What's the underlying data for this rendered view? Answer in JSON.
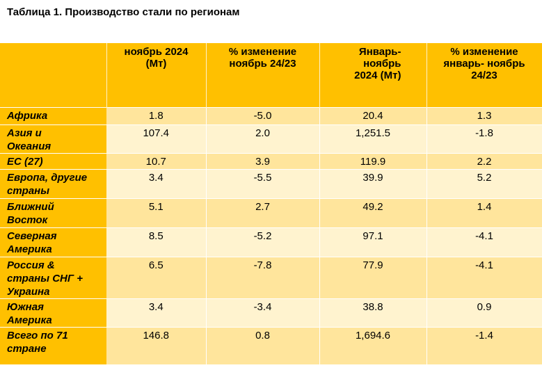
{
  "caption": "Таблица 1. Производство стали по регионам",
  "table": {
    "headers": [
      "",
      "ноябрь 2024 (Мт)",
      "% изменение ноябрь 24/23",
      "Январь-ноябрь 2024 (Мт)",
      "% изменение январь- ноябрь 24/23"
    ],
    "header_lines": [
      [
        ""
      ],
      [
        "ноябрь 2024",
        "(Мт)"
      ],
      [
        "% изменение",
        "ноябрь 24/23"
      ],
      [
        "Январь-",
        "ноябрь",
        "2024 (Мт)"
      ],
      [
        "% изменение",
        "январь- ноябрь",
        "24/23"
      ]
    ],
    "rows": [
      {
        "region_lines": [
          "Африка"
        ],
        "values": [
          "1.8",
          "-5.0",
          "20.4",
          "1.3"
        ]
      },
      {
        "region_lines": [
          "Азия и",
          "Океания"
        ],
        "values": [
          "107.4",
          "2.0",
          "1,251.5",
          "-1.8"
        ]
      },
      {
        "region_lines": [
          "ЕС (27)"
        ],
        "values": [
          "10.7",
          "3.9",
          "119.9",
          "2.2"
        ]
      },
      {
        "region_lines": [
          "Европа, другие",
          "страны"
        ],
        "values": [
          "3.4",
          "-5.5",
          "39.9",
          "5.2"
        ]
      },
      {
        "region_lines": [
          "Ближний",
          "Восток"
        ],
        "values": [
          "5.1",
          "2.7",
          "49.2",
          "1.4"
        ]
      },
      {
        "region_lines": [
          "Северная",
          "Америка"
        ],
        "values": [
          "8.5",
          "-5.2",
          "97.1",
          "-4.1"
        ]
      },
      {
        "region_lines": [
          "Россия &",
          "страны СНГ +",
          "Украина"
        ],
        "values": [
          "6.5",
          "-7.8",
          "77.9",
          "-4.1"
        ]
      },
      {
        "region_lines": [
          "Южная",
          "Америка"
        ],
        "values": [
          "3.4",
          "-3.4",
          "38.8",
          "0.9"
        ]
      },
      {
        "region_lines": [
          "Всего по 71",
          "стране"
        ],
        "values": [
          "146.8",
          "0.8",
          "1,694.6",
          "-1.4"
        ]
      }
    ]
  },
  "colors": {
    "header_bg": "#ffc000",
    "row_odd_bg": "#ffe59c",
    "row_even_bg": "#fff3cf"
  }
}
